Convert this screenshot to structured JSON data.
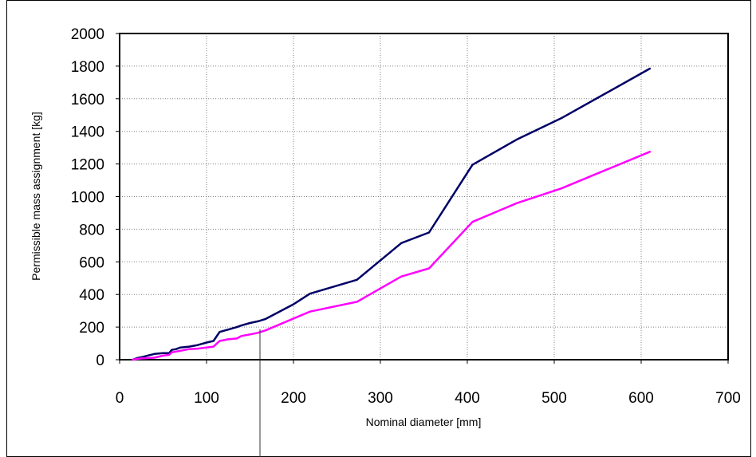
{
  "chart_data": {
    "type": "line",
    "xlabel": "Nominal diameter [mm]",
    "ylabel": "Permissible mass assignment [kg]",
    "xlim": [
      0,
      700
    ],
    "ylim": [
      0,
      2000
    ],
    "x_ticks": [
      "0",
      "100",
      "200",
      "300",
      "400",
      "500",
      "600",
      "700"
    ],
    "y_ticks": [
      "0",
      "200",
      "400",
      "600",
      "800",
      "1000",
      "1200",
      "1400",
      "1600",
      "1800",
      "2000"
    ],
    "grid": true,
    "legend": "none",
    "series": [
      {
        "color": "#000066",
        "points": [
          [
            15,
            0
          ],
          [
            20,
            10
          ],
          [
            25,
            15
          ],
          [
            32,
            25
          ],
          [
            40,
            35
          ],
          [
            50,
            40
          ],
          [
            57,
            40
          ],
          [
            60,
            60
          ],
          [
            65,
            65
          ],
          [
            70,
            75
          ],
          [
            80,
            80
          ],
          [
            90,
            90
          ],
          [
            100,
            105
          ],
          [
            108,
            115
          ],
          [
            115,
            170
          ],
          [
            125,
            185
          ],
          [
            135,
            200
          ],
          [
            140,
            210
          ],
          [
            150,
            225
          ],
          [
            159,
            235
          ],
          [
            168,
            250
          ],
          [
            200,
            340
          ],
          [
            219,
            405
          ],
          [
            273,
            490
          ],
          [
            324,
            715
          ],
          [
            356,
            780
          ],
          [
            406,
            1195
          ],
          [
            457,
            1350
          ],
          [
            508,
            1480
          ],
          [
            610,
            1785
          ]
        ]
      },
      {
        "color": "#ff00ff",
        "points": [
          [
            15,
            0
          ],
          [
            20,
            5
          ],
          [
            25,
            8
          ],
          [
            32,
            10
          ],
          [
            40,
            12
          ],
          [
            50,
            25
          ],
          [
            57,
            30
          ],
          [
            60,
            45
          ],
          [
            65,
            50
          ],
          [
            70,
            55
          ],
          [
            80,
            65
          ],
          [
            90,
            68
          ],
          [
            100,
            75
          ],
          [
            108,
            80
          ],
          [
            115,
            115
          ],
          [
            125,
            125
          ],
          [
            135,
            130
          ],
          [
            140,
            145
          ],
          [
            150,
            155
          ],
          [
            159,
            165
          ],
          [
            168,
            180
          ],
          [
            219,
            295
          ],
          [
            273,
            355
          ],
          [
            324,
            510
          ],
          [
            356,
            560
          ],
          [
            406,
            845
          ],
          [
            457,
            960
          ],
          [
            508,
            1050
          ],
          [
            610,
            1275
          ]
        ]
      }
    ]
  }
}
